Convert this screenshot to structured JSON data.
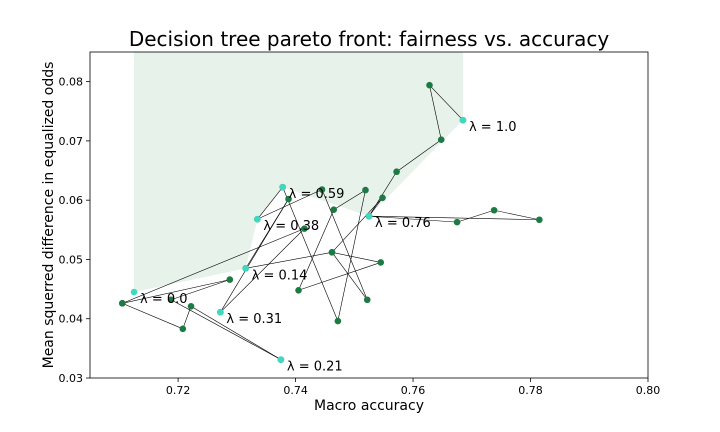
{
  "chart_data": {
    "type": "scatter",
    "title": "Decision tree pareto front: fairness vs. accuracy",
    "xlabel": "Macro accuracy",
    "ylabel": "Mean squerred difference in equalized odds",
    "xlim": [
      0.705,
      0.8
    ],
    "ylim": [
      0.03,
      0.085
    ],
    "xticks": [
      0.72,
      0.74,
      0.76,
      0.78,
      0.8
    ],
    "yticks": [
      0.03,
      0.04,
      0.05,
      0.06,
      0.07,
      0.08
    ],
    "xtick_labels": [
      "0.72",
      "0.74",
      "0.76",
      "0.78",
      "0.80"
    ],
    "ytick_labels": [
      "0.03",
      "0.04",
      "0.05",
      "0.06",
      "0.07",
      "0.08"
    ],
    "grid": false,
    "pareto_region": {
      "color": "#e6f2ea",
      "boundary": [
        {
          "x": 0.7125,
          "y": 0.0445
        },
        {
          "x": 0.7315,
          "y": 0.0485
        },
        {
          "x": 0.7335,
          "y": 0.0568
        },
        {
          "x": 0.7378,
          "y": 0.0622
        },
        {
          "x": 0.7525,
          "y": 0.0573
        },
        {
          "x": 0.7685,
          "y": 0.0735
        }
      ]
    },
    "pareto_points": {
      "color": "#40d9c0",
      "points": [
        {
          "x": 0.7125,
          "y": 0.0445
        },
        {
          "x": 0.7272,
          "y": 0.0411
        },
        {
          "x": 0.7315,
          "y": 0.0485
        },
        {
          "x": 0.7335,
          "y": 0.0568
        },
        {
          "x": 0.7375,
          "y": 0.0331
        },
        {
          "x": 0.7378,
          "y": 0.0622
        },
        {
          "x": 0.7525,
          "y": 0.0573
        },
        {
          "x": 0.7685,
          "y": 0.0735
        }
      ]
    },
    "trajectory": {
      "color": "#1e7a45",
      "points": [
        {
          "x": 0.7105,
          "y": 0.0426
        },
        {
          "x": 0.7208,
          "y": 0.0383
        },
        {
          "x": 0.7222,
          "y": 0.0421
        },
        {
          "x": 0.7375,
          "y": 0.0331
        },
        {
          "x": 0.7188,
          "y": 0.0432
        },
        {
          "x": 0.7288,
          "y": 0.0466
        },
        {
          "x": 0.7105,
          "y": 0.0426
        },
        {
          "x": 0.7415,
          "y": 0.0552
        },
        {
          "x": 0.7272,
          "y": 0.0411
        },
        {
          "x": 0.7388,
          "y": 0.0602
        },
        {
          "x": 0.7315,
          "y": 0.0485
        },
        {
          "x": 0.7462,
          "y": 0.0512
        },
        {
          "x": 0.7545,
          "y": 0.0495
        },
        {
          "x": 0.7405,
          "y": 0.0448
        },
        {
          "x": 0.7465,
          "y": 0.0584
        },
        {
          "x": 0.7519,
          "y": 0.0617
        },
        {
          "x": 0.7472,
          "y": 0.0396
        },
        {
          "x": 0.7378,
          "y": 0.0622
        },
        {
          "x": 0.7335,
          "y": 0.0568
        },
        {
          "x": 0.7445,
          "y": 0.0618
        },
        {
          "x": 0.7522,
          "y": 0.0432
        },
        {
          "x": 0.7462,
          "y": 0.0512
        },
        {
          "x": 0.7548,
          "y": 0.0604
        },
        {
          "x": 0.7525,
          "y": 0.0573
        },
        {
          "x": 0.7675,
          "y": 0.0563
        },
        {
          "x": 0.7738,
          "y": 0.0583
        },
        {
          "x": 0.7815,
          "y": 0.0567
        },
        {
          "x": 0.7525,
          "y": 0.0573
        },
        {
          "x": 0.7572,
          "y": 0.0648
        },
        {
          "x": 0.7648,
          "y": 0.0702
        },
        {
          "x": 0.7628,
          "y": 0.0794
        },
        {
          "x": 0.7685,
          "y": 0.0735
        }
      ]
    },
    "annotations": [
      {
        "text": "λ = 0.0",
        "x": 0.7125,
        "y": 0.0445
      },
      {
        "text": "λ = 0.31",
        "x": 0.7272,
        "y": 0.0411
      },
      {
        "text": "λ = 0.14",
        "x": 0.7315,
        "y": 0.0485
      },
      {
        "text": "λ = 0.38",
        "x": 0.7335,
        "y": 0.0568
      },
      {
        "text": "λ = 0.21",
        "x": 0.7375,
        "y": 0.0331
      },
      {
        "text": "λ = 0.59",
        "x": 0.7378,
        "y": 0.0622
      },
      {
        "text": "λ = 0.76",
        "x": 0.7525,
        "y": 0.0573
      },
      {
        "text": "λ = 1.0",
        "x": 0.7685,
        "y": 0.0735
      }
    ]
  }
}
